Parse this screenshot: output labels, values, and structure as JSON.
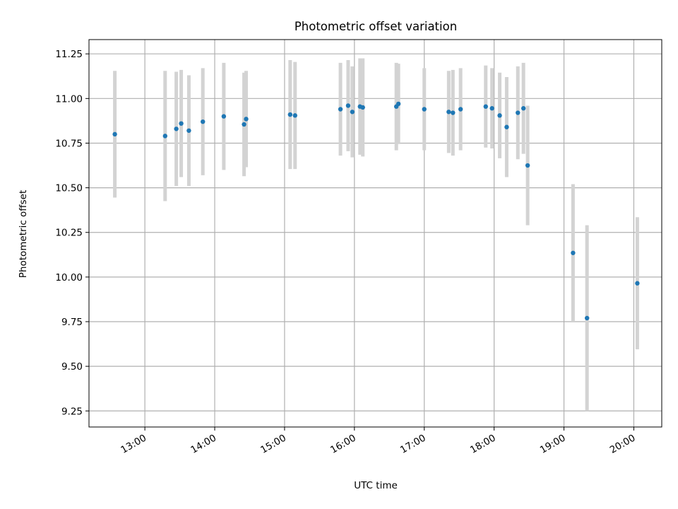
{
  "chart_data": {
    "type": "scatter",
    "title": "Photometric offset variation",
    "xlabel": "UTC time",
    "ylabel": "Photometric offset",
    "x_ticks": [
      "13:00",
      "14:00",
      "15:00",
      "16:00",
      "17:00",
      "18:00",
      "19:00",
      "20:00"
    ],
    "y_ticks": [
      "9.25",
      "9.50",
      "9.75",
      "10.00",
      "10.25",
      "10.50",
      "10.75",
      "11.00",
      "11.25"
    ],
    "x_tick_values_hours": [
      13,
      14,
      15,
      16,
      17,
      18,
      19,
      20
    ],
    "y_tick_values": [
      9.25,
      9.5,
      9.75,
      10.0,
      10.25,
      10.5,
      10.75,
      11.0,
      11.25
    ],
    "xlim_hours": [
      12.2,
      20.4
    ],
    "ylim": [
      9.16,
      11.33
    ],
    "grid": true,
    "point_color": "#1f77b4",
    "errorbar_color": "#d3d3d3",
    "points": [
      {
        "t": 12.57,
        "y": 10.8,
        "err": 0.355
      },
      {
        "t": 13.29,
        "y": 10.79,
        "err": 0.365
      },
      {
        "t": 13.45,
        "y": 10.83,
        "err": 0.32
      },
      {
        "t": 13.52,
        "y": 10.86,
        "err": 0.3
      },
      {
        "t": 13.63,
        "y": 10.82,
        "err": 0.31
      },
      {
        "t": 13.83,
        "y": 10.87,
        "err": 0.3
      },
      {
        "t": 14.13,
        "y": 10.9,
        "err": 0.3
      },
      {
        "t": 14.42,
        "y": 10.855,
        "err": 0.29
      },
      {
        "t": 14.45,
        "y": 10.885,
        "err": 0.27
      },
      {
        "t": 15.08,
        "y": 10.91,
        "err": 0.305
      },
      {
        "t": 15.15,
        "y": 10.905,
        "err": 0.3
      },
      {
        "t": 15.8,
        "y": 10.94,
        "err": 0.26
      },
      {
        "t": 15.91,
        "y": 10.96,
        "err": 0.255
      },
      {
        "t": 15.97,
        "y": 10.925,
        "err": 0.255
      },
      {
        "t": 16.08,
        "y": 10.955,
        "err": 0.27
      },
      {
        "t": 16.12,
        "y": 10.95,
        "err": 0.275
      },
      {
        "t": 16.6,
        "y": 10.955,
        "err": 0.245
      },
      {
        "t": 16.63,
        "y": 10.97,
        "err": 0.225
      },
      {
        "t": 17.0,
        "y": 10.94,
        "err": 0.23
      },
      {
        "t": 17.35,
        "y": 10.925,
        "err": 0.23
      },
      {
        "t": 17.41,
        "y": 10.92,
        "err": 0.24
      },
      {
        "t": 17.52,
        "y": 10.94,
        "err": 0.23
      },
      {
        "t": 17.88,
        "y": 10.955,
        "err": 0.23
      },
      {
        "t": 17.97,
        "y": 10.945,
        "err": 0.225
      },
      {
        "t": 18.08,
        "y": 10.905,
        "err": 0.24
      },
      {
        "t": 18.18,
        "y": 10.84,
        "err": 0.28
      },
      {
        "t": 18.34,
        "y": 10.92,
        "err": 0.26
      },
      {
        "t": 18.42,
        "y": 10.945,
        "err": 0.255
      },
      {
        "t": 18.48,
        "y": 10.625,
        "err": 0.335
      },
      {
        "t": 19.13,
        "y": 10.135,
        "err": 0.385
      },
      {
        "t": 19.33,
        "y": 9.77,
        "err": 0.52
      },
      {
        "t": 20.05,
        "y": 9.965,
        "err": 0.37
      }
    ]
  }
}
